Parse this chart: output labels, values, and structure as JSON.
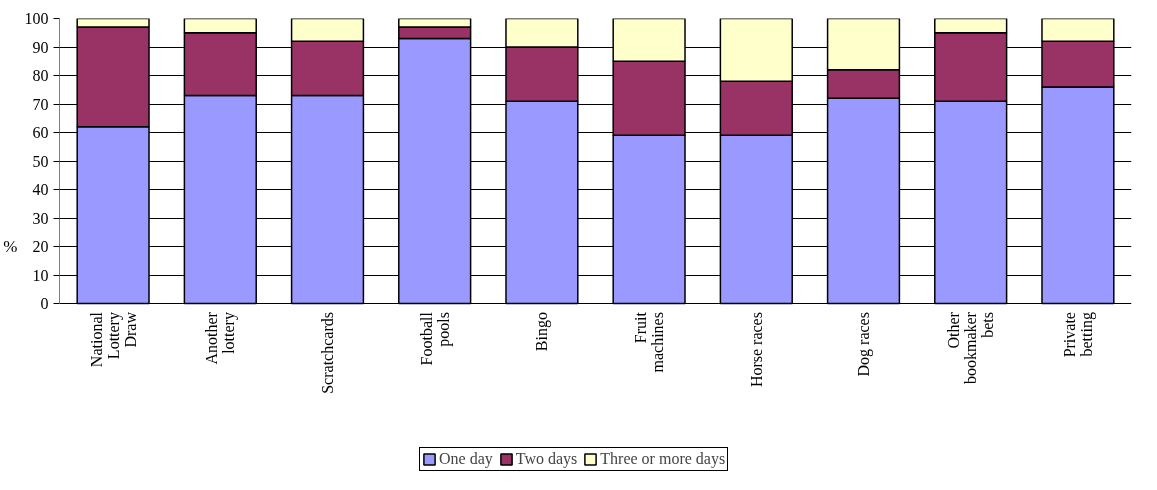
{
  "chart_data": {
    "type": "bar",
    "stacked": true,
    "ylabel": "%",
    "categories": [
      "National\nLottery\nDraw",
      "Another\nlottery",
      "Scratchcards",
      "Football\npools",
      "Bingo",
      "Fruit\nmachines",
      "Horse races",
      "Dog races",
      "Other\nbookmaker\nbets",
      "Private\nbetting"
    ],
    "series": [
      {
        "name": "One day",
        "color": "#9999ff",
        "values": [
          62,
          73,
          73,
          93,
          71,
          59,
          59,
          72,
          71,
          76
        ]
      },
      {
        "name": "Two days",
        "color": "#993366",
        "values": [
          35,
          22,
          19,
          4,
          19,
          26,
          19,
          10,
          24,
          16
        ]
      },
      {
        "name": "Three or more days",
        "color": "#ffffcc",
        "values": [
          3,
          5,
          8,
          3,
          10,
          15,
          22,
          18,
          5,
          8
        ]
      }
    ],
    "ylim": [
      0,
      100
    ],
    "yticks": [
      0,
      10,
      20,
      30,
      40,
      50,
      60,
      70,
      80,
      90,
      100
    ],
    "grid": "y",
    "legend": "bottom"
  }
}
